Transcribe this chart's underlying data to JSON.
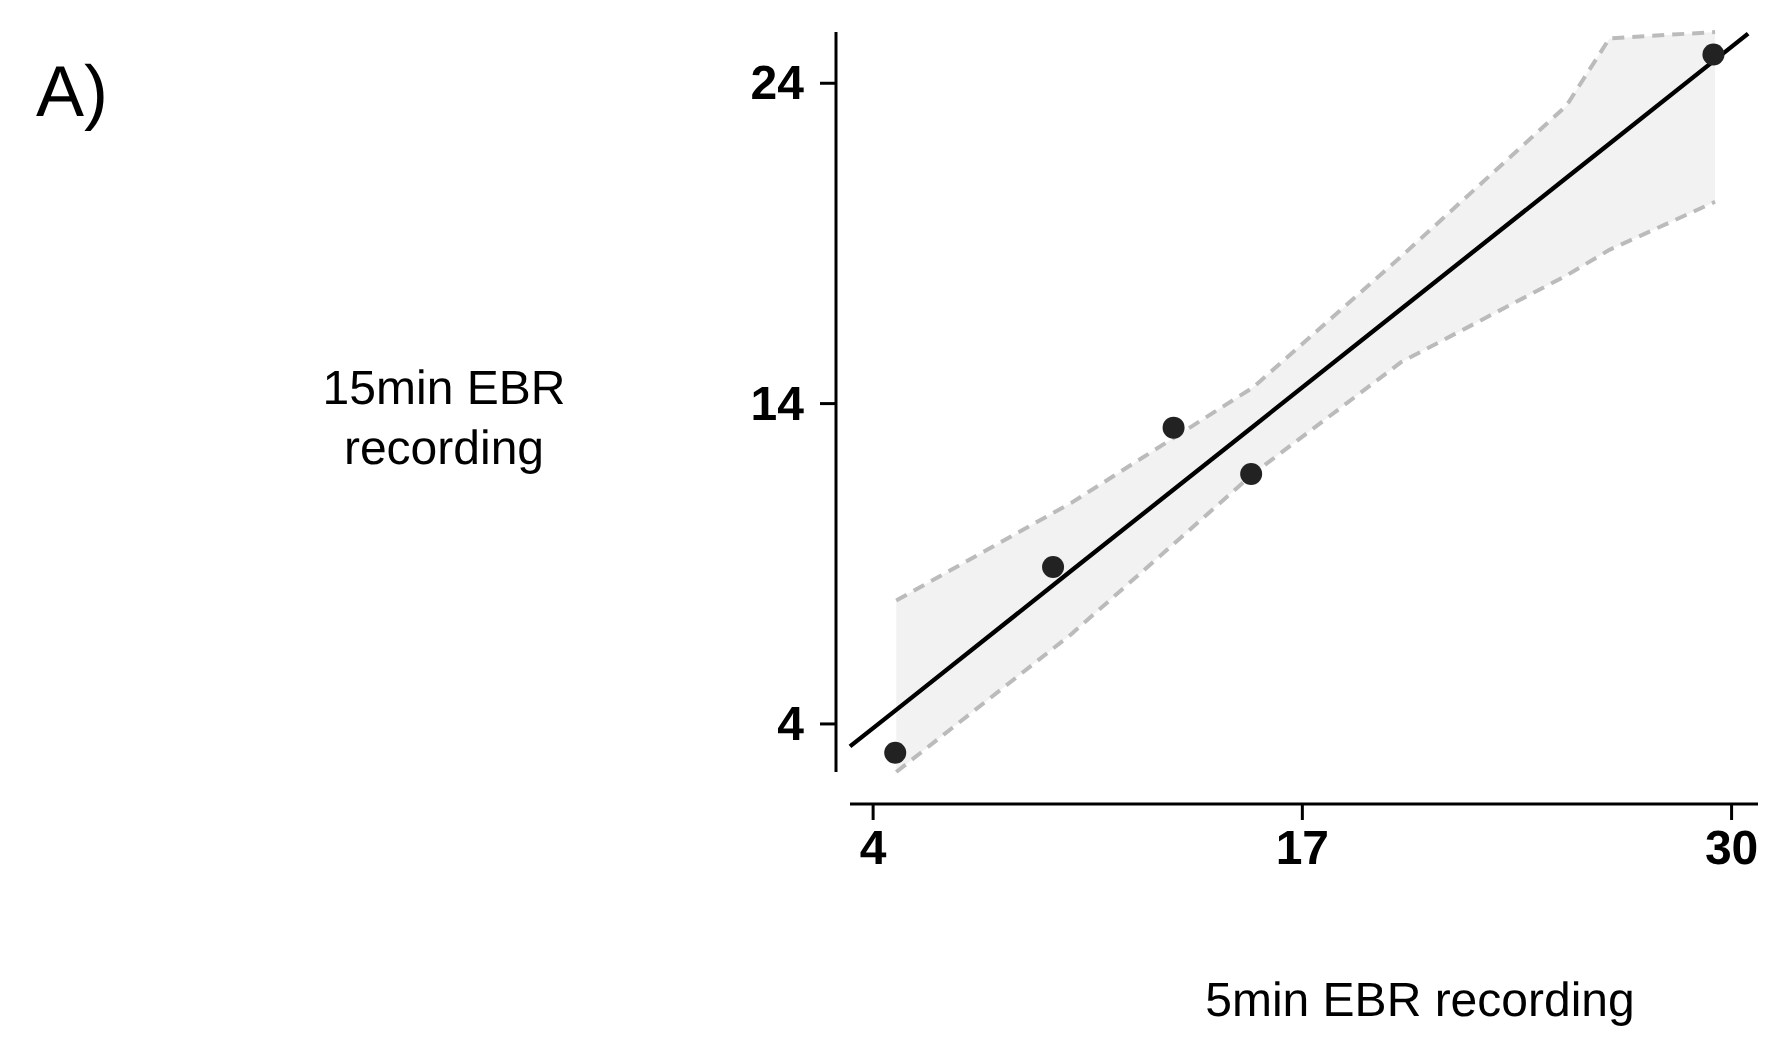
{
  "chart_data": {
    "type": "scatter",
    "xlabel": "5min EBR recording",
    "ylabel": "15min EBR\nrecording",
    "annotations": [
      "A)"
    ],
    "xlim": [
      3.3,
      30.8
    ],
    "ylim": [
      2.5,
      25.6
    ],
    "xticks": [
      4,
      17,
      30
    ],
    "yticks": [
      4,
      14,
      24
    ],
    "grid": false,
    "marker": "circle",
    "series": [
      {
        "type": "line",
        "color": "#000000",
        "line_style": "solid",
        "marker": "none",
        "x": [
          3.3,
          4.7,
          10,
          15.5,
          20,
          25,
          26.3,
          29.5,
          30.5
        ],
        "values": [
          3.3,
          4.44,
          8.78,
          13.28,
          16.96,
          21.05,
          22.11,
          24.73,
          25.55
        ],
        "lower": [
          null,
          2.5,
          6.8,
          11.8,
          15.3,
          18.0,
          18.8,
          20.3,
          null
        ],
        "upper": [
          null,
          7.85,
          10.9,
          14.5,
          18.6,
          23.3,
          25.4,
          25.6,
          null
        ]
      },
      {
        "type": "line",
        "color": "#bbbbbb",
        "line_style": "dashed",
        "marker": "none",
        "x": [
          4.7,
          10,
          15.5,
          20,
          25,
          26.3,
          29.5
        ],
        "values": [
          2.5,
          6.8,
          11.8,
          15.3,
          18.0,
          18.8,
          20.3
        ]
      },
      {
        "type": "line",
        "color": "#bbbbbb",
        "line_style": "dashed",
        "marker": "none",
        "x": [
          4.7,
          10,
          15.5,
          20,
          25,
          26.3,
          29.5
        ],
        "values": [
          7.85,
          10.9,
          14.5,
          18.6,
          23.3,
          25.4,
          25.6
        ]
      },
      {
        "color": "#222222",
        "x": [
          4.67,
          9.45,
          13.1,
          15.45,
          29.45
        ],
        "values": [
          3.1,
          8.9,
          13.25,
          11.8,
          24.9
        ]
      }
    ]
  }
}
